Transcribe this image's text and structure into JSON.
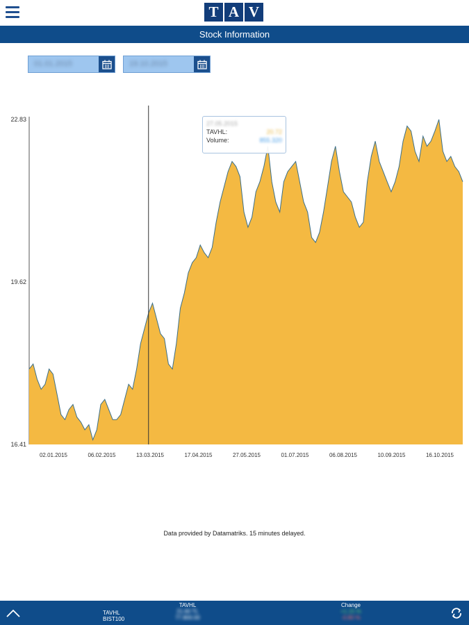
{
  "header": {
    "logo_letters": [
      "T",
      "A",
      "V"
    ],
    "menu_icon": "hamburger-menu-icon",
    "brand_color": "#123d7a"
  },
  "titlebar": {
    "title": "Stock Information",
    "color": "#0f4c8a"
  },
  "date_range": {
    "start": "01.01.2015",
    "end": "19.10.2015",
    "calendar_icon": "calendar-icon"
  },
  "chart_data": {
    "type": "area",
    "series": [
      {
        "name": "TAVHL",
        "color": "#f4b942",
        "line_color": "#3b6f8a",
        "values": [
          17.9,
          18.0,
          17.7,
          17.5,
          17.6,
          17.9,
          17.8,
          17.4,
          17.0,
          16.9,
          17.1,
          17.2,
          16.95,
          16.85,
          16.7,
          16.8,
          16.5,
          16.7,
          17.2,
          17.3,
          17.1,
          16.9,
          16.9,
          17.0,
          17.3,
          17.6,
          17.5,
          17.9,
          18.4,
          18.7,
          19.0,
          19.2,
          18.9,
          18.6,
          18.5,
          18.0,
          17.9,
          18.4,
          19.1,
          19.4,
          19.8,
          20.0,
          20.1,
          20.35,
          20.2,
          20.1,
          20.3,
          20.8,
          21.2,
          21.5,
          21.8,
          22.0,
          21.9,
          21.7,
          21.0,
          20.7,
          20.9,
          21.4,
          21.6,
          21.9,
          22.3,
          21.6,
          21.2,
          21.0,
          21.6,
          21.8,
          21.9,
          22.0,
          21.6,
          21.2,
          21.0,
          20.5,
          20.4,
          20.6,
          21.0,
          21.5,
          22.0,
          22.3,
          21.8,
          21.4,
          21.3,
          21.2,
          20.9,
          20.7,
          20.8,
          21.6,
          22.1,
          22.4,
          22.0,
          21.8,
          21.6,
          21.4,
          21.6,
          21.9,
          22.4,
          22.7,
          22.6,
          22.2,
          22.0,
          22.5,
          22.3,
          22.4,
          22.6,
          22.83,
          22.2,
          22.0,
          22.1,
          21.9,
          21.8,
          21.6
        ],
        "highlight_index": 30
      }
    ],
    "x_tick_labels": [
      "02.01.2015",
      "06.02.2015",
      "13.03.2015",
      "17.04.2015",
      "27.05.2015",
      "01.07.2015",
      "06.08.2015",
      "10.09.2015",
      "16.10.2015"
    ],
    "y_tick_labels": [
      "22.83",
      "19.62",
      "16.41"
    ],
    "ylim": [
      16.41,
      22.83
    ],
    "grid": false,
    "legend": "none"
  },
  "tooltip": {
    "date": "27.05.2015",
    "symbol_label": "TAVHL:",
    "symbol_value": "20.72",
    "volume_label": "Volume:",
    "volume_value": "855.320"
  },
  "disclaimer": "Data provided by Datamatriks. 15 minutes delayed.",
  "footer": {
    "up_icon": "chevron-up-icon",
    "refresh_icon": "refresh-icon",
    "symbols": [
      "TAVHL",
      "BIST100"
    ],
    "price_header": "TAVHL",
    "prices": [
      "21.60 TL",
      "77.800.00"
    ],
    "change_header": "Change",
    "changes": [
      "+1.15 %",
      "-0.80 %"
    ],
    "up_color": "#6fd36f",
    "down_color": "#ff6b6b"
  }
}
